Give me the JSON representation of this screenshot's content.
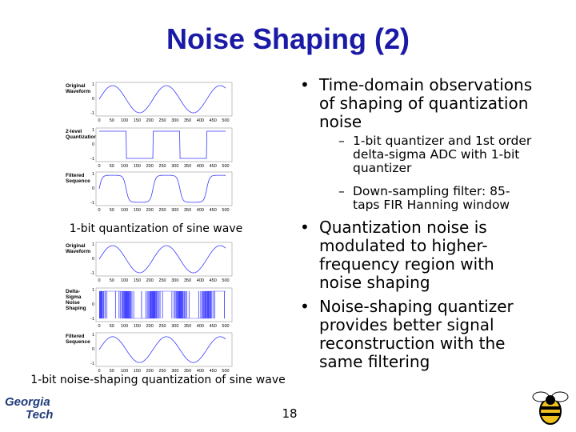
{
  "title": "Noise Shaping (2)",
  "figures": [
    {
      "caption": "1-bit quantization of sine wave",
      "panels": [
        "Original Waveform",
        "2-level Quantization",
        "Filtered Sequence"
      ]
    },
    {
      "caption": "1-bit noise-shaping quantization of sine wave",
      "panels": [
        "Original Waveform",
        "Delta-Sigma Noise Shaping",
        "Filtered Sequence"
      ]
    }
  ],
  "plot_xticks": [
    0,
    50,
    100,
    150,
    200,
    250,
    300,
    350,
    400,
    450,
    500
  ],
  "plot_yticks": [
    1,
    0,
    -1
  ],
  "bullets": [
    {
      "text": "Time-domain observations of shaping of quantization noise",
      "sub": [
        "1-bit quantizer and 1st order delta-sigma ADC with 1-bit quantizer",
        "Down-sampling filter: 85-taps FIR Hanning window"
      ]
    },
    {
      "text": "Quantization noise is modulated to higher-frequency region with noise shaping",
      "sub": []
    },
    {
      "text": "Noise-shaping quantizer provides better signal reconstruction with the same filtering",
      "sub": []
    }
  ],
  "logo": [
    "Georgia",
    "Tech"
  ],
  "page_number": "18"
}
